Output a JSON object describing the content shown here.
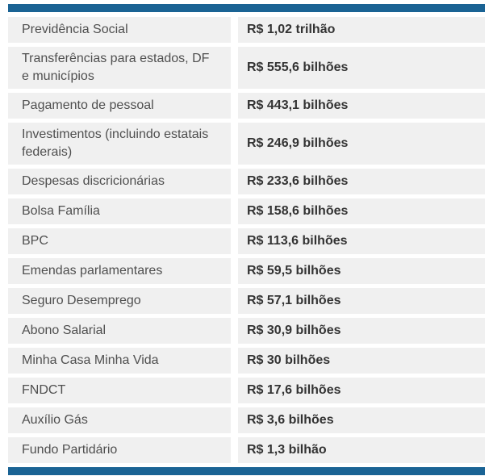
{
  "colors": {
    "accent_bar": "#1a6394",
    "row_background": "#f0f0f0",
    "label_text": "#4f4f4f",
    "value_text": "#333333",
    "page_background": "#ffffff"
  },
  "chart_data": {
    "type": "table",
    "title": "",
    "legend": [],
    "rows": [
      {
        "label": "Previdência Social",
        "value": "R$ 1,02 trilhão"
      },
      {
        "label": "Transferências para estados, DF e municípios",
        "value": "R$ 555,6 bilhões"
      },
      {
        "label": "Pagamento de pessoal",
        "value": "R$ 443,1 bilhões"
      },
      {
        "label": "Investimentos (incluindo estatais federais)",
        "value": "R$ 246,9 bilhões"
      },
      {
        "label": "Despesas discricionárias",
        "value": "R$ 233,6 bilhões"
      },
      {
        "label": "Bolsa Família",
        "value": "R$ 158,6 bilhões"
      },
      {
        "label": "BPC",
        "value": "R$ 113,6 bilhões"
      },
      {
        "label": "Emendas parlamentares",
        "value": "R$ 59,5 bilhões"
      },
      {
        "label": "Seguro Desemprego",
        "value": "R$ 57,1 bilhões"
      },
      {
        "label": "Abono Salarial",
        "value": "R$ 30,9 bilhões"
      },
      {
        "label": "Minha Casa Minha Vida",
        "value": "R$ 30 bilhões"
      },
      {
        "label": "FNDCT",
        "value": "R$ 17,6 bilhões"
      },
      {
        "label": "Auxílio Gás",
        "value": "R$ 3,6 bilhões"
      },
      {
        "label": "Fundo Partidário",
        "value": "R$ 1,3 bilhão"
      }
    ]
  }
}
